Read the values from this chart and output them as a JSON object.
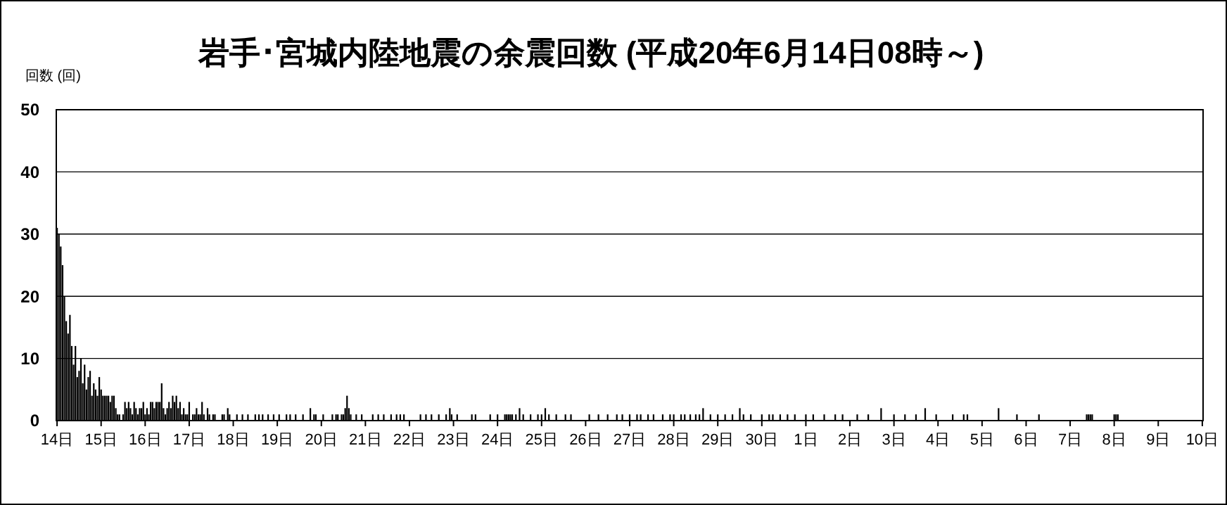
{
  "chart_data": {
    "type": "bar",
    "title": "岩手･宮城内陸地震の余震回数 (平成20年6月14日08時～)",
    "ylabel": "回数 (回)",
    "color": "#000000",
    "grid": "y",
    "ylim": [
      0,
      50
    ],
    "yticks": [
      0,
      10,
      20,
      30,
      40,
      50
    ],
    "categories": [
      "14日",
      null,
      null,
      null,
      null,
      null,
      null,
      null,
      null,
      null,
      null,
      null,
      null,
      null,
      null,
      null,
      null,
      null,
      null,
      null,
      null,
      null,
      null,
      null,
      "15日",
      null,
      null,
      null,
      null,
      null,
      null,
      null,
      null,
      null,
      null,
      null,
      null,
      null,
      null,
      null,
      null,
      null,
      null,
      null,
      null,
      null,
      null,
      null,
      "16日",
      null,
      null,
      null,
      null,
      null,
      null,
      null,
      null,
      null,
      null,
      null,
      null,
      null,
      null,
      null,
      null,
      null,
      null,
      null,
      null,
      null,
      null,
      null,
      "17日",
      null,
      null,
      null,
      null,
      null,
      null,
      null,
      null,
      null,
      null,
      null,
      null,
      null,
      null,
      null,
      null,
      null,
      null,
      null,
      null,
      null,
      null,
      null,
      "18日",
      null,
      null,
      null,
      null,
      null,
      null,
      null,
      null,
      null,
      null,
      null,
      null,
      null,
      null,
      null,
      null,
      null,
      null,
      null,
      null,
      null,
      null,
      null,
      "19日",
      null,
      null,
      null,
      null,
      null,
      null,
      null,
      null,
      null,
      null,
      null,
      null,
      null,
      null,
      null,
      null,
      null,
      null,
      null,
      null,
      null,
      null,
      null,
      "20日",
      null,
      null,
      null,
      null,
      null,
      null,
      null,
      null,
      null,
      null,
      null,
      null,
      null,
      null,
      null,
      null,
      null,
      null,
      null,
      null,
      null,
      null,
      null,
      "21日",
      null,
      null,
      null,
      null,
      null,
      null,
      null,
      null,
      null,
      null,
      null,
      null,
      null,
      null,
      null,
      null,
      null,
      null,
      null,
      null,
      null,
      null,
      null,
      "22日",
      null,
      null,
      null,
      null,
      null,
      null,
      null,
      null,
      null,
      null,
      null,
      null,
      null,
      null,
      null,
      null,
      null,
      null,
      null,
      null,
      null,
      null,
      null,
      "23日",
      null,
      null,
      null,
      null,
      null,
      null,
      null,
      null,
      null,
      null,
      null,
      null,
      null,
      null,
      null,
      null,
      null,
      null,
      null,
      null,
      null,
      null,
      null,
      "24日",
      null,
      null,
      null,
      null,
      null,
      null,
      null,
      null,
      null,
      null,
      null,
      null,
      null,
      null,
      null,
      null,
      null,
      null,
      null,
      null,
      null,
      null,
      null,
      "25日",
      null,
      null,
      null,
      null,
      null,
      null,
      null,
      null,
      null,
      null,
      null,
      null,
      null,
      null,
      null,
      null,
      null,
      null,
      null,
      null,
      null,
      null,
      null,
      "26日",
      null,
      null,
      null,
      null,
      null,
      null,
      null,
      null,
      null,
      null,
      null,
      null,
      null,
      null,
      null,
      null,
      null,
      null,
      null,
      null,
      null,
      null,
      null,
      "27日",
      null,
      null,
      null,
      null,
      null,
      null,
      null,
      null,
      null,
      null,
      null,
      null,
      null,
      null,
      null,
      null,
      null,
      null,
      null,
      null,
      null,
      null,
      null,
      "28日",
      null,
      null,
      null,
      null,
      null,
      null,
      null,
      null,
      null,
      null,
      null,
      null,
      null,
      null,
      null,
      null,
      null,
      null,
      null,
      null,
      null,
      null,
      null,
      "29日",
      null,
      null,
      null,
      null,
      null,
      null,
      null,
      null,
      null,
      null,
      null,
      null,
      null,
      null,
      null,
      null,
      null,
      null,
      null,
      null,
      null,
      null,
      null,
      "30日",
      null,
      null,
      null,
      null,
      null,
      null,
      null,
      null,
      null,
      null,
      null,
      null,
      null,
      null,
      null,
      null,
      null,
      null,
      null,
      null,
      null,
      null,
      null,
      "1日",
      null,
      null,
      null,
      null,
      null,
      null,
      null,
      null,
      null,
      null,
      null,
      null,
      null,
      null,
      null,
      null,
      null,
      null,
      null,
      null,
      null,
      null,
      null,
      "2日",
      null,
      null,
      null,
      null,
      null,
      null,
      null,
      null,
      null,
      null,
      null,
      null,
      null,
      null,
      null,
      null,
      null,
      null,
      null,
      null,
      null,
      null,
      null,
      "3日",
      null,
      null,
      null,
      null,
      null,
      null,
      null,
      null,
      null,
      null,
      null,
      null,
      null,
      null,
      null,
      null,
      null,
      null,
      null,
      null,
      null,
      null,
      null,
      "4日",
      null,
      null,
      null,
      null,
      null,
      null,
      null,
      null,
      null,
      null,
      null,
      null,
      null,
      null,
      null,
      null,
      null,
      null,
      null,
      null,
      null,
      null,
      null,
      "5日",
      null,
      null,
      null,
      null,
      null,
      null,
      null,
      null,
      null,
      null,
      null,
      null,
      null,
      null,
      null,
      null,
      null,
      null,
      null,
      null,
      null,
      null,
      null,
      "6日",
      null,
      null,
      null,
      null,
      null,
      null,
      null,
      null,
      null,
      null,
      null,
      null,
      null,
      null,
      null,
      null,
      null,
      null,
      null,
      null,
      null,
      null,
      null,
      "7日",
      null,
      null,
      null,
      null,
      null,
      null,
      null,
      null,
      null,
      null,
      null,
      null,
      null,
      null,
      null,
      null,
      null,
      null,
      null,
      null,
      null,
      null,
      null,
      "8日",
      null,
      null,
      null,
      null,
      null,
      null,
      null,
      null,
      null,
      null,
      null,
      null,
      null,
      null,
      null,
      null,
      null,
      null,
      null,
      null,
      null,
      null,
      null,
      "9日",
      null,
      null,
      null,
      null,
      null,
      null,
      null,
      null,
      null,
      null,
      null,
      null,
      null,
      null,
      null,
      null,
      null,
      null,
      null,
      null,
      null,
      null,
      null,
      "10日"
    ],
    "values": [
      31,
      30,
      28,
      25,
      20,
      16,
      14,
      17,
      12,
      9,
      12,
      7,
      8,
      10,
      6,
      9,
      5,
      7,
      8,
      4,
      6,
      5,
      4,
      7,
      5,
      4,
      4,
      4,
      4,
      3,
      4,
      4,
      2,
      1,
      1,
      0,
      1,
      3,
      2,
      3,
      2,
      1,
      3,
      2,
      1,
      2,
      2,
      3,
      1,
      2,
      1,
      3,
      3,
      2,
      3,
      3,
      3,
      6,
      2,
      1,
      2,
      3,
      2,
      4,
      3,
      4,
      2,
      3,
      1,
      2,
      1,
      1,
      3,
      0,
      1,
      1,
      2,
      1,
      1,
      3,
      1,
      0,
      2,
      1,
      0,
      1,
      1,
      0,
      0,
      0,
      1,
      1,
      0,
      2,
      1,
      0,
      0,
      0,
      1,
      0,
      0,
      1,
      0,
      0,
      1,
      0,
      0,
      0,
      1,
      0,
      1,
      0,
      1,
      0,
      0,
      1,
      0,
      0,
      1,
      0,
      0,
      1,
      0,
      0,
      0,
      1,
      0,
      1,
      0,
      0,
      1,
      0,
      0,
      0,
      1,
      0,
      0,
      0,
      2,
      0,
      1,
      1,
      0,
      0,
      0,
      1,
      0,
      0,
      0,
      0,
      1,
      0,
      1,
      1,
      0,
      1,
      1,
      2,
      4,
      2,
      1,
      0,
      0,
      1,
      0,
      0,
      1,
      0,
      0,
      0,
      0,
      0,
      1,
      0,
      0,
      1,
      0,
      0,
      1,
      0,
      0,
      0,
      1,
      0,
      0,
      1,
      0,
      1,
      0,
      1,
      0,
      0,
      0,
      0,
      0,
      0,
      0,
      0,
      1,
      0,
      0,
      1,
      0,
      0,
      1,
      0,
      0,
      0,
      1,
      0,
      0,
      0,
      1,
      0,
      2,
      1,
      0,
      0,
      1,
      0,
      0,
      0,
      0,
      0,
      0,
      0,
      1,
      0,
      1,
      0,
      0,
      0,
      0,
      0,
      0,
      0,
      1,
      0,
      0,
      0,
      1,
      0,
      0,
      0,
      1,
      1,
      1,
      1,
      1,
      0,
      1,
      0,
      2,
      0,
      1,
      0,
      0,
      0,
      1,
      0,
      0,
      0,
      1,
      0,
      1,
      0,
      2,
      0,
      1,
      0,
      0,
      0,
      1,
      0,
      0,
      0,
      0,
      1,
      0,
      0,
      1,
      0,
      0,
      0,
      0,
      0,
      0,
      0,
      0,
      0,
      1,
      0,
      0,
      0,
      0,
      1,
      0,
      0,
      0,
      0,
      1,
      0,
      0,
      0,
      0,
      1,
      0,
      0,
      1,
      0,
      0,
      0,
      1,
      0,
      0,
      0,
      1,
      0,
      1,
      0,
      0,
      0,
      1,
      0,
      0,
      1,
      0,
      0,
      0,
      0,
      1,
      0,
      0,
      0,
      1,
      0,
      1,
      0,
      0,
      0,
      1,
      0,
      1,
      0,
      0,
      1,
      0,
      0,
      1,
      0,
      1,
      0,
      2,
      0,
      0,
      0,
      1,
      0,
      0,
      0,
      1,
      0,
      0,
      0,
      1,
      0,
      0,
      0,
      1,
      0,
      0,
      0,
      2,
      0,
      1,
      0,
      0,
      0,
      1,
      0,
      0,
      0,
      0,
      0,
      1,
      0,
      0,
      0,
      1,
      0,
      1,
      0,
      0,
      0,
      1,
      0,
      0,
      0,
      1,
      0,
      0,
      0,
      1,
      0,
      0,
      0,
      0,
      0,
      1,
      0,
      0,
      0,
      1,
      0,
      0,
      0,
      0,
      0,
      1,
      0,
      0,
      0,
      0,
      0,
      1,
      0,
      0,
      0,
      1,
      0,
      0,
      0,
      0,
      0,
      0,
      0,
      1,
      0,
      0,
      0,
      0,
      0,
      1,
      0,
      0,
      0,
      0,
      0,
      0,
      2,
      0,
      0,
      0,
      0,
      0,
      0,
      1,
      0,
      0,
      0,
      0,
      0,
      1,
      0,
      0,
      0,
      0,
      0,
      1,
      0,
      0,
      0,
      0,
      2,
      0,
      0,
      0,
      0,
      0,
      1,
      0,
      0,
      0,
      0,
      0,
      0,
      0,
      0,
      1,
      0,
      0,
      0,
      0,
      0,
      1,
      0,
      1,
      0,
      0,
      0,
      0,
      0,
      0,
      0,
      0,
      0,
      0,
      0,
      0,
      0,
      0,
      0,
      0,
      2,
      0,
      0,
      0,
      0,
      0,
      0,
      0,
      0,
      0,
      1,
      0,
      0,
      0,
      0,
      0,
      0,
      0,
      0,
      0,
      0,
      0,
      1,
      0,
      0,
      0,
      0,
      0,
      0,
      0,
      0,
      0,
      0,
      0,
      0,
      0,
      0,
      0,
      0,
      0,
      0,
      0,
      0,
      0,
      0,
      0,
      0,
      0,
      1,
      1,
      1,
      1,
      0,
      0,
      0,
      0,
      0,
      0,
      0,
      0,
      0,
      0,
      0,
      1,
      1,
      1,
      0,
      0,
      0,
      0,
      0,
      0,
      0,
      0,
      0,
      0,
      0,
      0,
      0,
      0,
      0,
      0,
      0,
      0,
      0,
      0,
      0,
      0,
      0,
      0,
      0,
      0,
      0,
      0,
      0,
      0,
      0,
      0,
      0,
      0,
      0,
      0,
      0,
      0,
      0,
      0,
      0,
      0,
      0,
      0,
      0,
      0
    ]
  }
}
